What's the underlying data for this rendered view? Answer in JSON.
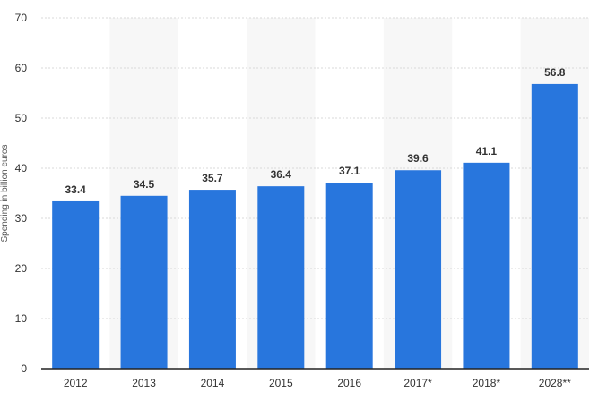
{
  "chart_data": {
    "type": "bar",
    "title": "",
    "xlabel": "",
    "ylabel": "Spending in billion euros",
    "categories": [
      "2012",
      "2013",
      "2014",
      "2015",
      "2016",
      "2017*",
      "2018*",
      "2028**"
    ],
    "values": [
      33.4,
      34.5,
      35.7,
      36.4,
      37.1,
      39.6,
      41.1,
      56.8
    ],
    "value_labels": [
      "33.4",
      "34.5",
      "35.7",
      "36.4",
      "37.1",
      "39.6",
      "41.1",
      "56.8"
    ],
    "ylim": [
      0,
      70
    ],
    "yticks": [
      0,
      10,
      20,
      30,
      40,
      50,
      60,
      70
    ],
    "grid": true,
    "legend": "none",
    "colors": {
      "bar": "#2876dd",
      "grid": "#d9d9d9",
      "band": "#f7f7f7",
      "axis": "#222222"
    }
  }
}
